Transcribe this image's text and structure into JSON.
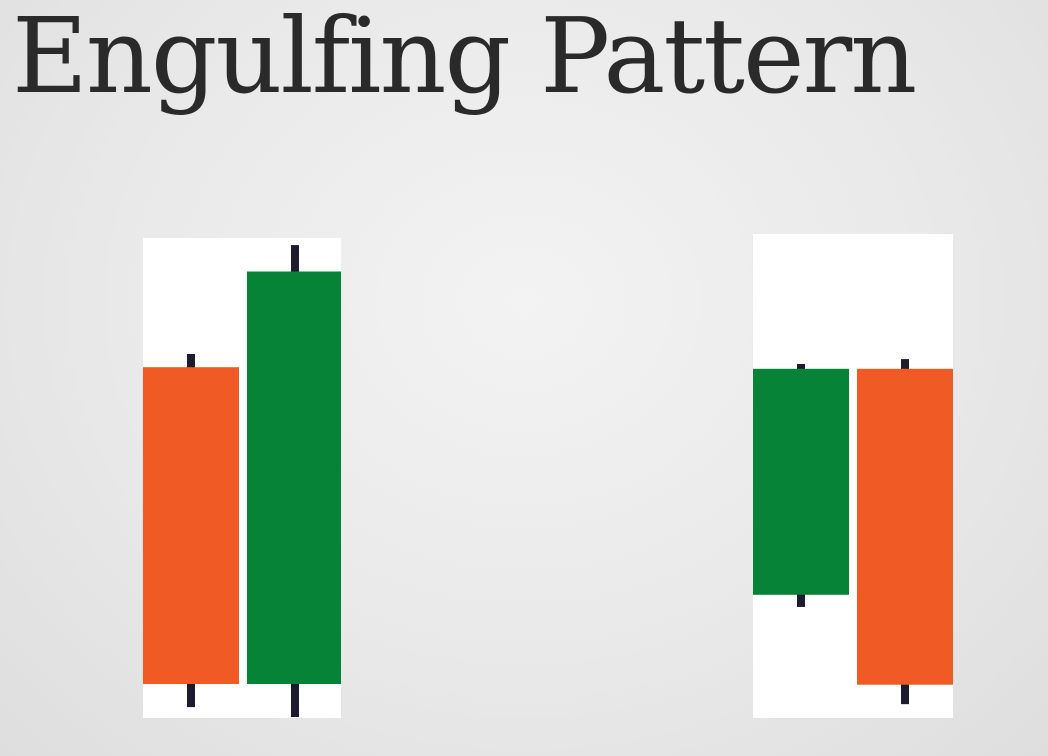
{
  "title": "Engulfing Pattern",
  "colors": {
    "bullish": "#078337",
    "bearish": "#f05a24",
    "wick": "#1c1c2e",
    "panel": "#ffffff"
  },
  "patterns": [
    {
      "name": "bullish-engulfing",
      "candles": [
        {
          "color": "bearish",
          "high": 100,
          "open": 96,
          "close": 0,
          "low": -7
        },
        {
          "color": "bullish",
          "high": 133,
          "open": 0,
          "close": 125,
          "low": -10
        }
      ]
    },
    {
      "name": "bearish-engulfing",
      "candles": [
        {
          "color": "bullish",
          "high": 135,
          "open": 40,
          "close": 133,
          "low": 35
        },
        {
          "color": "bearish",
          "high": 137,
          "open": 133,
          "close": 3,
          "low": -5
        }
      ]
    }
  ]
}
